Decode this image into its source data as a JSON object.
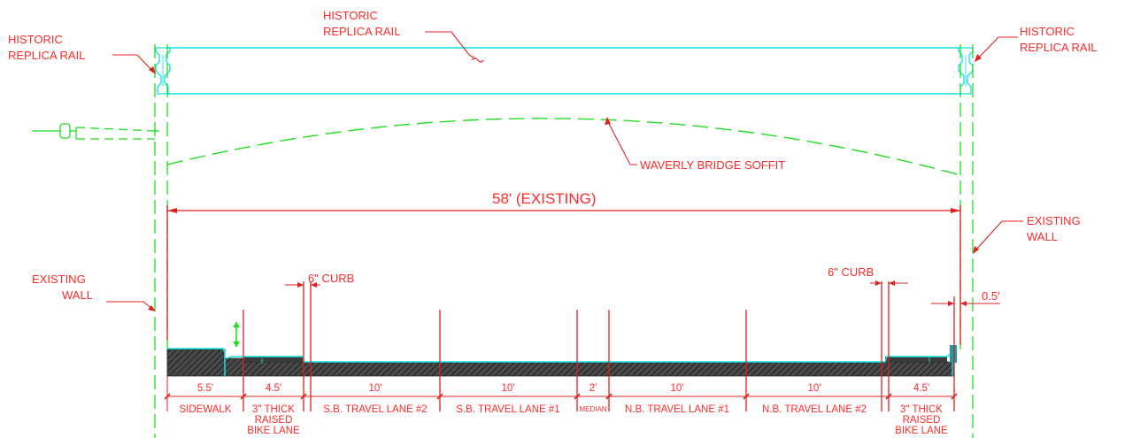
{
  "callouts": {
    "rail_top": [
      "HISTORIC",
      "REPLICA RAIL"
    ],
    "rail_left": [
      "HISTORIC",
      "REPLICA RAIL"
    ],
    "rail_right": [
      "HISTORIC",
      "REPLICA RAIL"
    ],
    "soffit": "WAVERLY BRIDGE SOFFIT",
    "existing_width": "58' (EXISTING)",
    "wall_left": [
      "EXISTING",
      "WALL"
    ],
    "wall_right": [
      "EXISTING",
      "WALL"
    ],
    "curb_left": "6\" CURB",
    "curb_right": "6\" CURB",
    "offset_right": "0.5'"
  },
  "lanes": [
    {
      "dim": "5.5'",
      "name": [
        "SIDEWALK"
      ]
    },
    {
      "dim": "4.5'",
      "name": [
        "3\" THICK",
        "RAISED",
        "BIKE LANE"
      ]
    },
    {
      "dim": "10'",
      "name": [
        "S.B. TRAVEL LANE #2"
      ]
    },
    {
      "dim": "10'",
      "name": [
        "S.B. TRAVEL LANE #1"
      ]
    },
    {
      "dim": "2'",
      "name": [
        "MEDIAN"
      ]
    },
    {
      "dim": "10'",
      "name": [
        "N.B. TRAVEL LANE #1"
      ]
    },
    {
      "dim": "10'",
      "name": [
        "N.B. TRAVEL LANE #2"
      ]
    },
    {
      "dim": "4.5'",
      "name": [
        "3\" THICK",
        "RAISED",
        "BIKE LANE"
      ]
    }
  ],
  "colors": {
    "annotation": "#ff2a2a",
    "rail": "#10e0e0",
    "hidden": "#22dd22",
    "slab": "#3a3a3a"
  }
}
